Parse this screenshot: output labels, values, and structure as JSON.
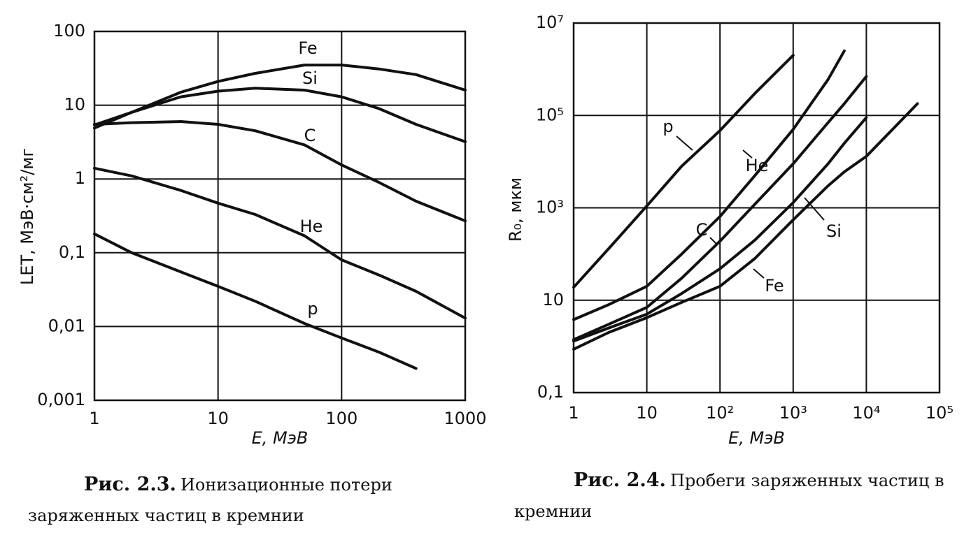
{
  "chart_data": [
    {
      "type": "line",
      "caption_number": "Рис. 2.3.",
      "caption": "Ионизационные потери заряженных частиц в кремнии",
      "xlabel": "E, МэВ",
      "ylabel": "LET, МэВ·см²/мг",
      "log_x": true,
      "log_y": true,
      "grid": true,
      "xlim": [
        1,
        1000
      ],
      "xticks": [
        1,
        10,
        100,
        1000
      ],
      "ylim": [
        0.001,
        100
      ],
      "yticks": [
        {
          "value": 0.001,
          "label": "0,001"
        },
        {
          "value": 0.01,
          "label": "0,01"
        },
        {
          "value": 0.1,
          "label": "0,1"
        },
        1,
        10,
        100
      ],
      "x": [
        1,
        2,
        5,
        10,
        20,
        50,
        100,
        200,
        400,
        1000
      ],
      "series": [
        {
          "name": "Fe",
          "color": "#111111",
          "values": [
            4.9,
            8,
            15,
            21,
            27,
            35,
            35,
            31,
            26,
            16
          ]
        },
        {
          "name": "Si",
          "color": "#111111",
          "values": [
            5.4,
            8,
            13,
            15.5,
            17,
            16,
            13,
            9,
            5.5,
            3.2
          ]
        },
        {
          "name": "C",
          "color": "#111111",
          "values": [
            5.5,
            5.8,
            6,
            5.5,
            4.5,
            2.9,
            1.55,
            0.9,
            0.5,
            0.27
          ]
        },
        {
          "name": "He",
          "color": "#111111",
          "values": [
            1.4,
            1.1,
            0.7,
            0.47,
            0.33,
            0.17,
            0.08,
            0.05,
            0.03,
            0.013
          ]
        },
        {
          "name": "p",
          "color": "#111111",
          "values": [
            0.18,
            0.1,
            0.055,
            0.035,
            0.022,
            0.011,
            0.007,
            0.0045,
            0.0027,
            null
          ]
        }
      ]
    },
    {
      "type": "line",
      "caption_number": "Рис. 2.4.",
      "caption": "Пробеги заряженных частиц в кремнии",
      "xlabel": "E, МэВ",
      "ylabel": "R₀, мкм",
      "log_x": true,
      "log_y": true,
      "grid": true,
      "xlim": [
        1,
        100000
      ],
      "xticks": [
        1,
        10,
        {
          "value": 100,
          "label": "10²"
        },
        {
          "value": 1000,
          "label": "10³"
        },
        {
          "value": 10000,
          "label": "10⁴"
        },
        {
          "value": 100000,
          "label": "10⁵"
        }
      ],
      "ylim": [
        0.1,
        10000000
      ],
      "yticks": [
        {
          "value": 0.1,
          "label": "0,1"
        },
        10,
        {
          "value": 1000,
          "label": "10³"
        },
        {
          "value": 100000,
          "label": "10⁵"
        },
        {
          "value": 10000000,
          "label": "10⁷"
        }
      ],
      "x": [
        1,
        3,
        10,
        30,
        100,
        300,
        1000,
        3000,
        5000,
        10000,
        50000
      ],
      "series": [
        {
          "name": "p",
          "color": "#111111",
          "values": [
            19,
            130,
            1100,
            8000,
            47000,
            300000,
            2000000,
            null,
            null,
            null,
            null
          ]
        },
        {
          "name": "He",
          "color": "#111111",
          "values": [
            3.8,
            8,
            20,
            100,
            650,
            5000,
            50000,
            600000,
            2500000,
            null,
            null
          ]
        },
        {
          "name": "C",
          "color": "#111111",
          "values": [
            1.4,
            3,
            7,
            30,
            190,
            1200,
            9000,
            70000,
            180000,
            700000,
            null
          ]
        },
        {
          "name": "Si",
          "color": "#111111",
          "values": [
            1.3,
            2.5,
            5,
            14,
            48,
            200,
            1300,
            9000,
            25000,
            90000,
            null
          ]
        },
        {
          "name": "Fe",
          "color": "#111111",
          "values": [
            0.87,
            2,
            4.2,
            9,
            20,
            80,
            550,
            3000,
            6000,
            13000,
            180000
          ]
        }
      ]
    }
  ]
}
